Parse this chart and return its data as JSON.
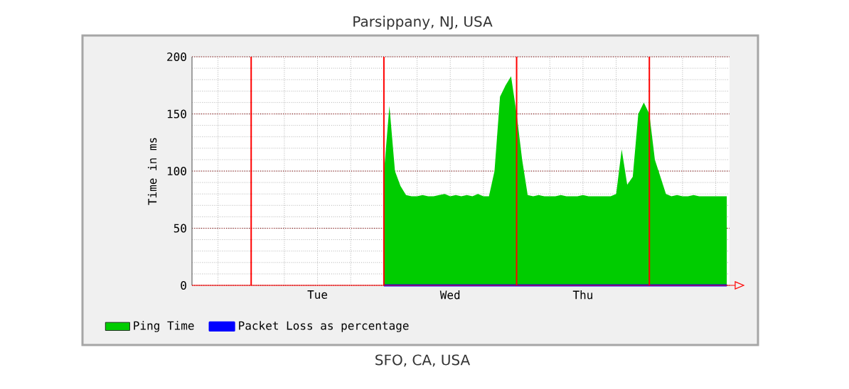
{
  "chart_data": {
    "type": "area",
    "title": "Parsippany, NJ, USA",
    "ylabel": "Time in ms",
    "annotations": [
      "SFO, CA, USA"
    ],
    "categories": [
      null,
      null,
      null,
      null,
      null,
      null,
      null,
      null,
      null,
      null,
      null,
      null,
      null,
      null,
      null,
      null,
      null,
      null,
      null,
      null,
      null,
      null,
      "Tue",
      null,
      null,
      null,
      null,
      null,
      null,
      null,
      null,
      null,
      null,
      null,
      null,
      null,
      null,
      null,
      null,
      null,
      null,
      null,
      null,
      null,
      null,
      null,
      "Wed",
      null,
      null,
      null,
      null,
      null,
      null,
      null,
      null,
      null,
      null,
      null,
      null,
      null,
      null,
      null,
      null,
      null,
      null,
      null,
      null,
      null,
      null,
      null,
      "Thu",
      null,
      null,
      null,
      null,
      null,
      null,
      null,
      null,
      null,
      null,
      null,
      null,
      null,
      null,
      null,
      null,
      null,
      null,
      null,
      null,
      null,
      null,
      null,
      null,
      null,
      null
    ],
    "ylim": [
      0,
      200
    ],
    "yticks": [
      0,
      50,
      100,
      150,
      200
    ],
    "grid": true,
    "legend": "bottom",
    "series": [
      {
        "name": "Ping Time",
        "color": "#00cc00",
        "values": [
          null,
          null,
          null,
          null,
          null,
          null,
          null,
          null,
          null,
          null,
          null,
          null,
          null,
          null,
          null,
          null,
          null,
          null,
          null,
          null,
          null,
          null,
          null,
          null,
          null,
          null,
          null,
          null,
          null,
          null,
          null,
          null,
          null,
          null,
          98,
          157,
          100,
          87,
          79,
          78,
          78,
          79,
          78,
          78,
          79,
          80,
          78,
          79,
          78,
          79,
          78,
          80,
          78,
          78,
          100,
          165,
          175,
          183,
          150,
          110,
          79,
          78,
          79,
          78,
          78,
          78,
          79,
          78,
          78,
          78,
          79,
          78,
          78,
          78,
          78,
          78,
          80,
          119,
          88,
          95,
          150,
          160,
          150,
          110,
          95,
          80,
          78,
          79,
          78,
          78,
          79,
          78,
          78,
          78,
          78,
          78,
          78
        ]
      },
      {
        "name": "Packet Loss as percentage",
        "color": "#0000ff",
        "type": "line",
        "values": [
          null,
          null,
          null,
          null,
          null,
          null,
          null,
          null,
          null,
          null,
          null,
          null,
          null,
          null,
          null,
          null,
          null,
          null,
          null,
          null,
          null,
          null,
          null,
          null,
          null,
          null,
          null,
          null,
          null,
          null,
          null,
          null,
          null,
          null,
          0,
          0,
          0,
          0,
          0,
          0,
          0,
          0,
          0,
          0,
          0,
          0,
          0,
          0,
          0,
          0,
          0,
          0,
          0,
          0,
          0,
          0,
          0,
          0,
          0,
          0,
          0,
          0,
          0,
          0,
          0,
          0,
          0,
          0,
          0,
          0,
          0,
          0,
          0,
          0,
          0,
          0,
          0,
          0,
          0,
          0,
          0,
          0,
          0,
          0,
          0,
          0,
          0,
          0,
          0,
          0,
          0,
          0,
          0,
          0,
          0,
          0,
          0
        ]
      }
    ]
  }
}
